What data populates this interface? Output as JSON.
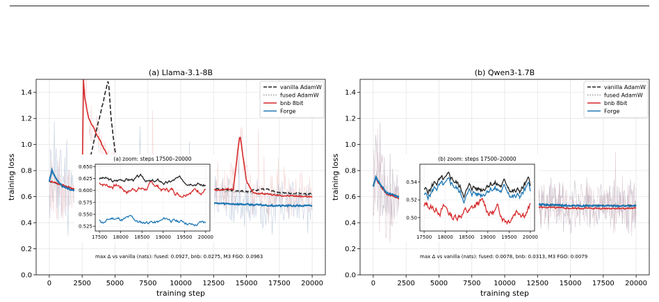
{
  "chart_data": [
    {
      "type": "line",
      "title": "(a) Llama-3.1-8B",
      "xlabel": "training step",
      "ylabel": "training loss",
      "xlim": [
        -1000,
        21000
      ],
      "ylim": [
        0.0,
        1.5
      ],
      "xticks": [
        0,
        2500,
        5000,
        7500,
        10000,
        12500,
        15000,
        17500,
        20000
      ],
      "xtick_labels": [
        "0",
        "2500",
        "5000",
        "7500",
        "10000",
        "12500",
        "15000",
        "17500",
        "20000"
      ],
      "yticks": [
        0.0,
        0.2,
        0.4,
        0.6,
        0.8,
        1.0,
        1.2,
        1.4
      ],
      "ytick_labels": [
        "0.0",
        "0.2",
        "0.4",
        "0.6",
        "0.8",
        "1.0",
        "1.2",
        "1.4"
      ],
      "grid": true,
      "legend_position": "top-right",
      "series": [
        {
          "name": "vanilla AdamW",
          "color": "#222222",
          "style": "dashed",
          "x": [
            0,
            2500,
            4500,
            4700,
            5000,
            5500,
            6000,
            7500,
            10000,
            12500,
            15000,
            16500,
            17500,
            20000
          ],
          "y": [
            0.72,
            0.64,
            1.5,
            1.2,
            0.95,
            0.82,
            0.76,
            0.71,
            0.68,
            0.66,
            0.64,
            0.66,
            0.63,
            0.62
          ]
        },
        {
          "name": "fused AdamW",
          "color": "#999999",
          "style": "dotted",
          "x": [
            0,
            2500,
            5000,
            7500,
            10000,
            12500,
            15000,
            17500,
            20000
          ],
          "y": [
            0.72,
            0.64,
            0.72,
            0.69,
            0.67,
            0.65,
            0.63,
            0.62,
            0.61
          ]
        },
        {
          "name": "bnb 8bit",
          "color": "#d62728",
          "style": "solid",
          "x": [
            0,
            2500,
            2600,
            2700,
            3000,
            3500,
            4000,
            4500,
            5000,
            5500,
            6000,
            7500,
            10000,
            12500,
            14000,
            14500,
            15000,
            15500,
            17500,
            20000
          ],
          "y": [
            0.72,
            0.64,
            1.5,
            1.35,
            1.2,
            1.1,
            1.0,
            0.9,
            0.82,
            0.76,
            0.72,
            0.69,
            0.67,
            0.65,
            0.66,
            1.08,
            0.72,
            0.63,
            0.61,
            0.6
          ]
        },
        {
          "name": "Forge",
          "color": "#1f77b4",
          "style": "solid",
          "x": [
            0,
            200,
            500,
            1000,
            2000,
            3000,
            4000,
            5000,
            6000,
            6800,
            6900,
            7000,
            7500,
            10000,
            12500,
            15000,
            17500,
            20000
          ],
          "y": [
            0.72,
            0.8,
            0.74,
            0.68,
            0.64,
            0.62,
            0.6,
            0.59,
            0.58,
            0.58,
            1.05,
            0.58,
            0.57,
            0.56,
            0.55,
            0.54,
            0.53,
            0.53
          ]
        }
      ],
      "inset": {
        "title": "(a) zoom: steps 17500–20000",
        "xlim": [
          17400,
          20100
        ],
        "ylim": [
          0.515,
          0.655
        ],
        "xticks": [
          17500,
          18000,
          18500,
          19000,
          19500,
          20000
        ],
        "xtick_labels": [
          "17500",
          "18000",
          "18500",
          "19000",
          "19500",
          "20000"
        ],
        "yticks": [
          0.525,
          0.55,
          0.575,
          0.6,
          0.625,
          0.65
        ],
        "ytick_labels": [
          "0.525",
          "0.550",
          "0.575",
          "0.600",
          "0.625",
          "0.650"
        ],
        "series": [
          {
            "color": "#222222",
            "base": 0.625,
            "trend": -0.008,
            "amp": 0.006,
            "seed": 3
          },
          {
            "color": "#d62728",
            "base": 0.61,
            "trend": -0.012,
            "amp": 0.008,
            "seed": 7
          },
          {
            "color": "#1f77b4",
            "base": 0.54,
            "trend": -0.008,
            "amp": 0.006,
            "seed": 11
          }
        ]
      },
      "annotation": "max Δ vs vanilla (nats):    fused: 0.0927,    bnb: 0.0275,    M3 FGO: 0.0963"
    },
    {
      "type": "line",
      "title": "(b) Qwen3-1.7B",
      "xlabel": "training step",
      "ylabel": "training loss",
      "xlim": [
        -1000,
        21000
      ],
      "ylim": [
        0.0,
        1.5
      ],
      "xticks": [
        0,
        2500,
        5000,
        7500,
        10000,
        12500,
        15000,
        17500,
        20000
      ],
      "xtick_labels": [
        "0",
        "2500",
        "5000",
        "7500",
        "10000",
        "12500",
        "15000",
        "17500",
        "20000"
      ],
      "yticks": [
        0.0,
        0.2,
        0.4,
        0.6,
        0.8,
        1.0,
        1.2,
        1.4
      ],
      "ytick_labels": [
        "0.0",
        "0.2",
        "0.4",
        "0.6",
        "0.8",
        "1.0",
        "1.2",
        "1.4"
      ],
      "grid": true,
      "legend_position": "top-right",
      "series": [
        {
          "name": "vanilla AdamW",
          "color": "#222222",
          "style": "dashed",
          "x": [
            0,
            200,
            500,
            1000,
            2500,
            5000,
            7500,
            10000,
            12500,
            15000,
            17500,
            20000
          ],
          "y": [
            0.68,
            0.75,
            0.7,
            0.63,
            0.58,
            0.56,
            0.55,
            0.54,
            0.54,
            0.53,
            0.53,
            0.53
          ]
        },
        {
          "name": "fused AdamW",
          "color": "#999999",
          "style": "dotted",
          "x": [
            0,
            200,
            500,
            1000,
            2500,
            5000,
            7500,
            10000,
            12500,
            15000,
            17500,
            20000
          ],
          "y": [
            0.68,
            0.75,
            0.7,
            0.63,
            0.58,
            0.56,
            0.55,
            0.54,
            0.54,
            0.53,
            0.53,
            0.53
          ]
        },
        {
          "name": "bnb 8bit",
          "color": "#d62728",
          "style": "solid",
          "x": [
            0,
            200,
            500,
            1000,
            2500,
            5000,
            7500,
            10000,
            12500,
            15000,
            17500,
            20000
          ],
          "y": [
            0.68,
            0.74,
            0.69,
            0.62,
            0.57,
            0.54,
            0.53,
            0.52,
            0.52,
            0.51,
            0.51,
            0.51
          ]
        },
        {
          "name": "Forge",
          "color": "#1f77b4",
          "style": "solid",
          "x": [
            0,
            200,
            500,
            1000,
            2500,
            5000,
            7500,
            10000,
            12500,
            15000,
            17500,
            20000
          ],
          "y": [
            0.68,
            0.75,
            0.7,
            0.63,
            0.58,
            0.56,
            0.55,
            0.54,
            0.54,
            0.53,
            0.53,
            0.53
          ]
        }
      ],
      "inset": {
        "title": "(b) zoom: steps 17500–20000",
        "xlim": [
          17400,
          20100
        ],
        "ylim": [
          0.485,
          0.56
        ],
        "xticks": [
          17500,
          18000,
          18500,
          19000,
          19500,
          20000
        ],
        "xtick_labels": [
          "17500",
          "18000",
          "18500",
          "19000",
          "19500",
          "20000"
        ],
        "yticks": [
          0.5,
          0.52,
          0.54
        ],
        "ytick_labels": [
          "0.50",
          "0.52",
          "0.54"
        ],
        "series": [
          {
            "color": "#222222",
            "base": 0.536,
            "trend": 0.0,
            "amp": 0.008,
            "seed": 5
          },
          {
            "color": "#1f77b4",
            "base": 0.53,
            "trend": 0.0,
            "amp": 0.008,
            "seed": 5
          },
          {
            "color": "#d62728",
            "base": 0.508,
            "trend": 0.0,
            "amp": 0.008,
            "seed": 13
          }
        ]
      },
      "annotation": "max Δ vs vanilla (nats):    fused: 0.0078,    bnb: 0.0313,    M3 FGO: 0.0079"
    }
  ]
}
